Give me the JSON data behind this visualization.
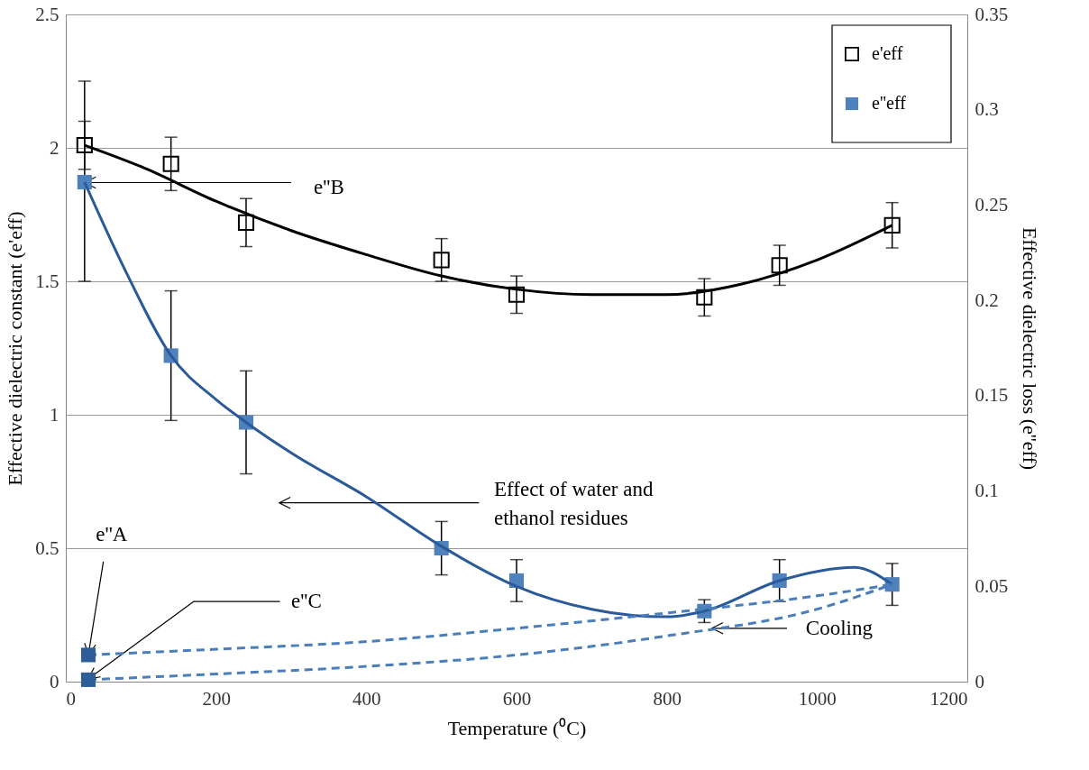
{
  "chart_data": {
    "type": "scatter",
    "xlabel": "Temperature (⁰C)",
    "ylabel": "Effective dielectric constant (e'eff)",
    "y2label": "Effective dielectric loss (e''eff)",
    "xlim": [
      0,
      1200
    ],
    "xticks": [
      0,
      200,
      400,
      600,
      800,
      1000,
      1200
    ],
    "ylim": [
      0,
      2.5
    ],
    "yticks": [
      0,
      0.5,
      1,
      1.5,
      2,
      2.5
    ],
    "y2lim": [
      0,
      0.35
    ],
    "y2ticks": [
      0,
      0.05,
      0.1,
      0.15,
      0.2,
      0.25,
      0.3,
      0.35
    ],
    "grid": "y",
    "legend": "top right",
    "marker": "square",
    "series": [
      {
        "name": "e'eff",
        "color": "#000000",
        "x": [
          25,
          140,
          240,
          500,
          600,
          850,
          950,
          1100
        ],
        "values": [
          2.01,
          1.94,
          1.72,
          1.58,
          1.45,
          1.44,
          1.56,
          1.71
        ],
        "errors": [
          0.09,
          0.1,
          0.09,
          0.08,
          0.07,
          0.07,
          0.075,
          0.085
        ]
      },
      {
        "name": "e''eff",
        "axis": "y2",
        "color": "#4f81bd",
        "x": [
          25,
          140,
          240,
          500,
          600,
          850,
          950,
          1100
        ],
        "values": [
          0.262,
          0.171,
          0.136,
          0.07,
          0.053,
          0.037,
          0.053,
          0.051
        ],
        "errors": [
          [
            0.21,
            0.315
          ],
          0.034,
          0.027,
          0.014,
          0.011,
          0.006,
          0.011,
          0.011
        ]
      },
      {
        "type": "line",
        "marker": "none",
        "line_style": "solid",
        "color": "#000000",
        "x": [
          25,
          100,
          200,
          300,
          400,
          500,
          600,
          700,
          800,
          900,
          1000,
          1100
        ],
        "values": [
          2.01,
          1.93,
          1.8,
          1.69,
          1.6,
          1.52,
          1.47,
          1.45,
          1.45,
          1.49,
          1.58,
          1.71
        ]
      },
      {
        "type": "line",
        "marker": "none",
        "axis": "y2",
        "line_style": "solid",
        "color": "#2a5a9a",
        "x": [
          25,
          80,
          140,
          200,
          240,
          300,
          400,
          500,
          600,
          700,
          800,
          850,
          950,
          1050,
          1100
        ],
        "values": [
          0.262,
          0.215,
          0.171,
          0.148,
          0.136,
          0.12,
          0.097,
          0.071,
          0.05,
          0.038,
          0.034,
          0.037,
          0.053,
          0.06,
          0.051
        ]
      },
      {
        "type": "line",
        "marker": "none",
        "axis": "y2",
        "line_style": "dashed",
        "color": "#4a7ebb",
        "x": [
          30,
          200,
          400,
          600,
          800,
          1000,
          1100
        ],
        "values": [
          0.014,
          0.017,
          0.021,
          0.028,
          0.036,
          0.045,
          0.051
        ]
      },
      {
        "type": "line",
        "marker": "none",
        "axis": "y2",
        "line_style": "dashed",
        "color": "#4a7ebb",
        "x": [
          30,
          200,
          400,
          600,
          800,
          1000,
          1100
        ],
        "values": [
          0.001,
          0.004,
          0.008,
          0.014,
          0.024,
          0.038,
          0.051
        ]
      },
      {
        "axis": "y2",
        "color": "#2e5e95",
        "x": [
          30,
          30
        ],
        "values": [
          0.014,
          0.001
        ]
      }
    ],
    "annotations": [
      {
        "text": "e''B",
        "x": 25,
        "y": 1.87
      },
      {
        "text": "e''A",
        "x": 30,
        "y": 0.1
      },
      {
        "text": "e''C",
        "x": 30,
        "y": 0.01
      },
      "Effect of water and\nethanol residues",
      {
        "text": "Cooling",
        "x": 860,
        "y": 0.2
      }
    ]
  }
}
